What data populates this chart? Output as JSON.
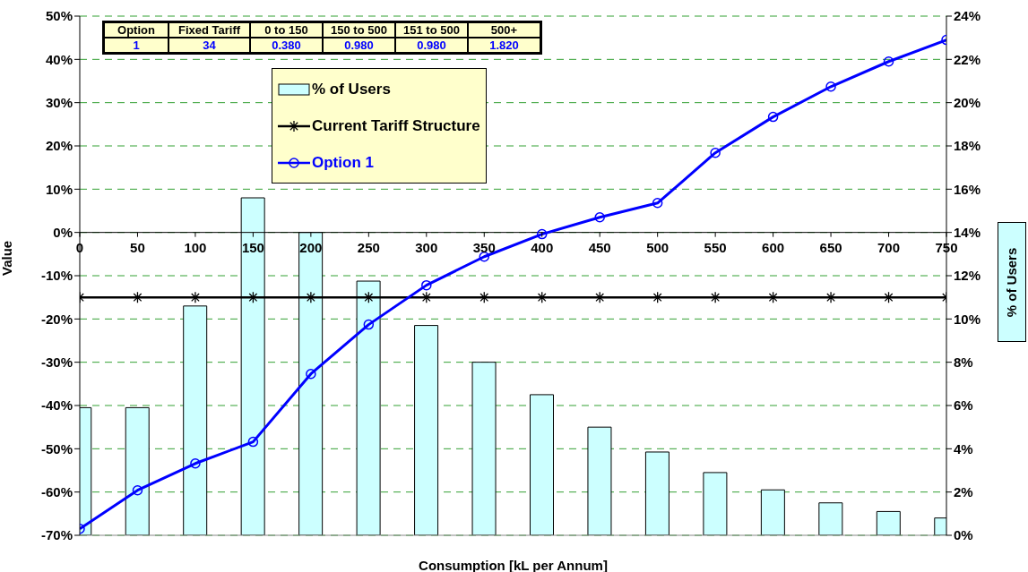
{
  "chart_data": {
    "type": "bar",
    "xlabel": "Consumption [kL per Annum]",
    "ylabel": "Value",
    "y2label": "% of Users",
    "x": [
      0,
      50,
      100,
      150,
      200,
      250,
      300,
      350,
      400,
      450,
      500,
      550,
      600,
      650,
      700,
      750
    ],
    "xlim": [
      0,
      750
    ],
    "xticks": [
      0,
      50,
      100,
      150,
      200,
      250,
      300,
      350,
      400,
      450,
      500,
      550,
      600,
      650,
      700,
      750
    ],
    "ylim": [
      -70,
      50
    ],
    "yticks": [
      {
        "value": -70,
        "label": "-70%"
      },
      {
        "value": -60,
        "label": "-60%"
      },
      {
        "value": -50,
        "label": "-50%"
      },
      {
        "value": -40,
        "label": "-40%"
      },
      {
        "value": -30,
        "label": "-30%"
      },
      {
        "value": -20,
        "label": "-20%"
      },
      {
        "value": -10,
        "label": "-10%"
      },
      {
        "value": 0,
        "label": "0%"
      },
      {
        "value": 10,
        "label": "10%"
      },
      {
        "value": 20,
        "label": "20%"
      },
      {
        "value": 30,
        "label": "30%"
      },
      {
        "value": 40,
        "label": "40%"
      },
      {
        "value": 50,
        "label": "50%"
      }
    ],
    "y2lim": [
      0,
      24
    ],
    "y2ticks": [
      {
        "value": 0,
        "label": "0%"
      },
      {
        "value": 2,
        "label": "2%"
      },
      {
        "value": 4,
        "label": "4%"
      },
      {
        "value": 6,
        "label": "6%"
      },
      {
        "value": 8,
        "label": "8%"
      },
      {
        "value": 10,
        "label": "10%"
      },
      {
        "value": 12,
        "label": "12%"
      },
      {
        "value": 14,
        "label": "14%"
      },
      {
        "value": 16,
        "label": "16%"
      },
      {
        "value": 18,
        "label": "18%"
      },
      {
        "value": 20,
        "label": "20%"
      },
      {
        "value": 22,
        "label": "22%"
      },
      {
        "value": 24,
        "label": "24%"
      }
    ],
    "grid": "y",
    "legend": "top",
    "annotations": [
      "Option",
      "Fixed Tariff",
      "0 to 150",
      "150 to 500",
      "151 to 500",
      "500+",
      "1",
      "34",
      "0.380",
      "0.980",
      "0.980",
      "1.820"
    ],
    "series": [
      {
        "name": "% of Users",
        "axis": "y2",
        "color": "#ccffff",
        "values": [
          5.9,
          5.9,
          10.6,
          15.6,
          14.0,
          11.75,
          9.7,
          8.0,
          6.5,
          5.0,
          3.85,
          2.9,
          2.1,
          1.5,
          1.1,
          0.8
        ]
      },
      {
        "name": "Current Tariff Structure",
        "type": "line",
        "color": "#000000",
        "marker": "cross",
        "values": [
          -15,
          -15,
          -15,
          -15,
          -15,
          -15,
          -15,
          -15,
          -15,
          -15,
          -15,
          -15,
          -15,
          -15,
          -15,
          -15
        ]
      },
      {
        "name": "Option 1",
        "type": "line",
        "color": "#0000ff",
        "marker": "circle",
        "values": [
          -68.5,
          -59.6,
          -53.4,
          -48.4,
          -32.7,
          -21.3,
          -12.2,
          -5.6,
          -0.4,
          3.5,
          6.8,
          18.4,
          26.7,
          33.7,
          39.5,
          44.5
        ]
      }
    ]
  }
}
